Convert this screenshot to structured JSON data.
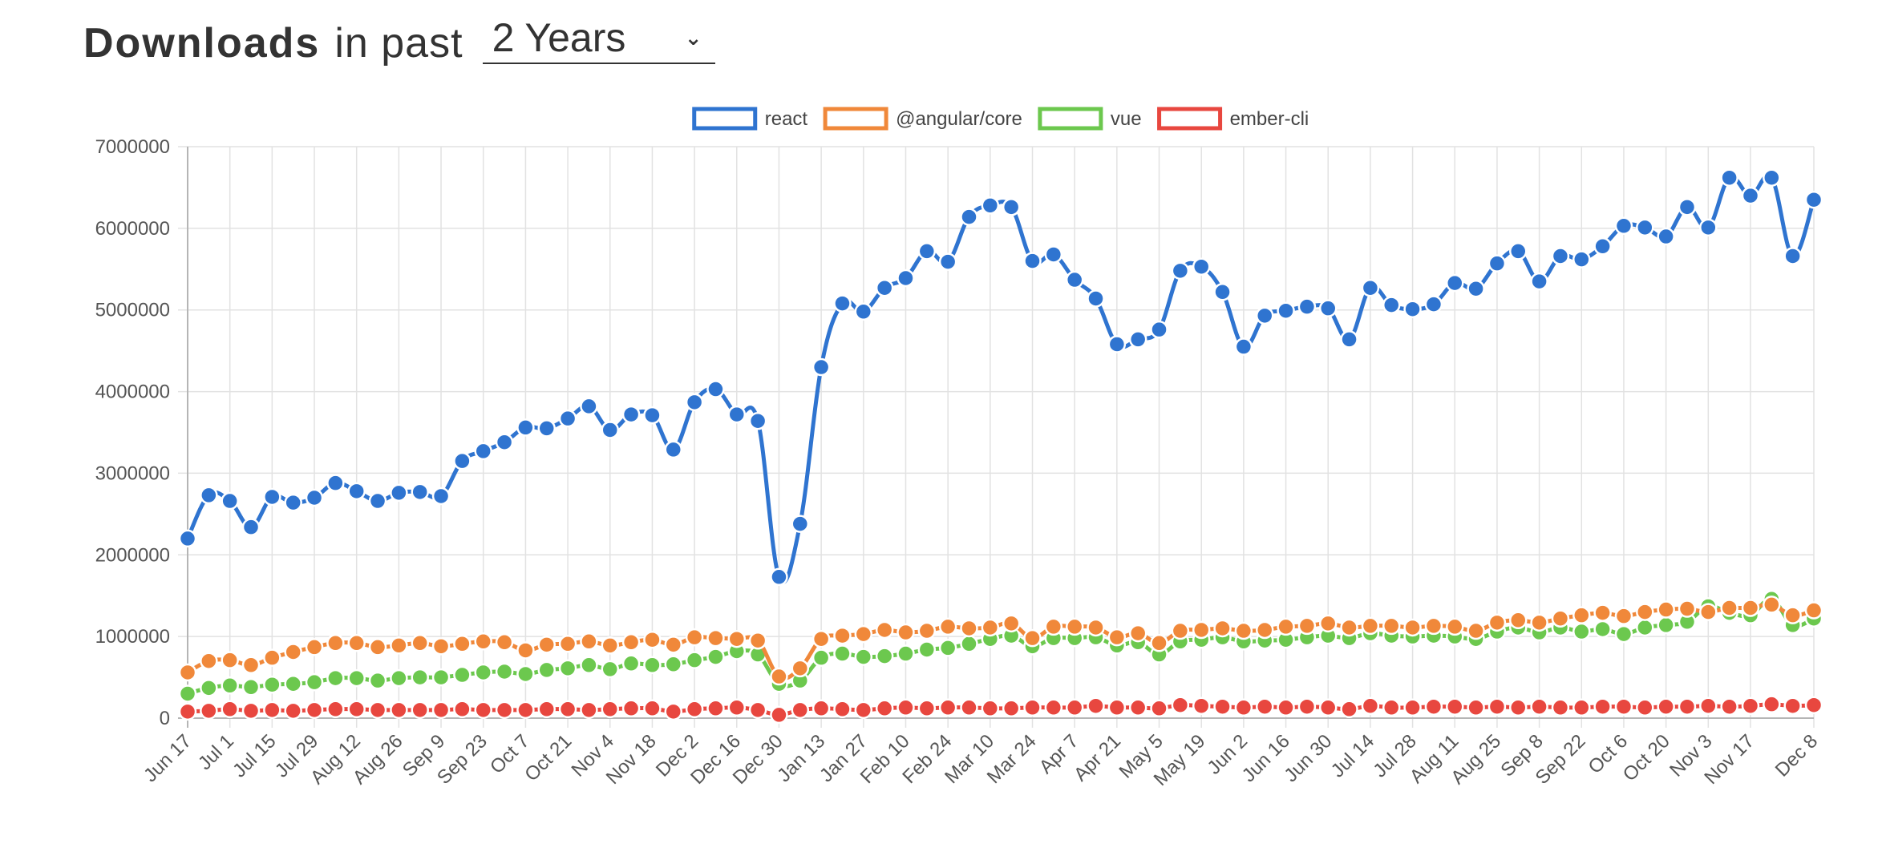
{
  "header": {
    "title_bold": "Downloads",
    "title_rest": "in past",
    "period_selected": "2 Years",
    "chevron_icon": "chevron-down-icon"
  },
  "chart_data": {
    "type": "line",
    "grid": true,
    "legend_position": "top-center",
    "ylim": [
      0,
      7000000
    ],
    "yticks": [
      0,
      1000000,
      2000000,
      3000000,
      4000000,
      5000000,
      6000000,
      7000000
    ],
    "x": [
      "Jun 17",
      "Jun 24",
      "Jul 1",
      "Jul 8",
      "Jul 15",
      "Jul 22",
      "Jul 29",
      "Aug 5",
      "Aug 12",
      "Aug 19",
      "Aug 26",
      "Sep 2",
      "Sep 9",
      "Sep 16",
      "Sep 23",
      "Sep 30",
      "Oct 7",
      "Oct 14",
      "Oct 21",
      "Oct 28",
      "Nov 4",
      "Nov 11",
      "Nov 18",
      "Nov 25",
      "Dec 2",
      "Dec 9",
      "Dec 16",
      "Dec 23",
      "Dec 30",
      "Jan 6",
      "Jan 13",
      "Jan 20",
      "Jan 27",
      "Feb 3",
      "Feb 10",
      "Feb 17",
      "Feb 24",
      "Mar 3",
      "Mar 10",
      "Mar 17",
      "Mar 24",
      "Mar 31",
      "Apr 7",
      "Apr 14",
      "Apr 21",
      "Apr 28",
      "May 5",
      "May 12",
      "May 19",
      "May 26",
      "Jun 2",
      "Jun 9",
      "Jun 16",
      "Jun 23",
      "Jun 30",
      "Jul 7",
      "Jul 14",
      "Jul 21",
      "Jul 28",
      "Aug 4",
      "Aug 11",
      "Aug 18",
      "Aug 25",
      "Sep 1",
      "Sep 8",
      "Sep 15",
      "Sep 22",
      "Sep 29",
      "Oct 6",
      "Oct 13",
      "Oct 20",
      "Oct 27",
      "Nov 3",
      "Nov 10",
      "Nov 17",
      "Nov 24",
      "Dec 1",
      "Dec 8"
    ],
    "xtick_labels": [
      "Jun 17",
      "Jul 1",
      "Jul 15",
      "Jul 29",
      "Aug 12",
      "Aug 26",
      "Sep 9",
      "Sep 23",
      "Oct 7",
      "Oct 21",
      "Nov 4",
      "Nov 18",
      "Dec 2",
      "Dec 16",
      "Dec 30",
      "Jan 13",
      "Jan 27",
      "Feb 10",
      "Feb 24",
      "Mar 10",
      "Mar 24",
      "Apr 7",
      "Apr 21",
      "May 5",
      "May 19",
      "Jun 2",
      "Jun 16",
      "Jun 30",
      "Jul 14",
      "Jul 28",
      "Aug 11",
      "Aug 25",
      "Sep 8",
      "Sep 22",
      "Oct 6",
      "Oct 20",
      "Nov 3",
      "Nov 17",
      "Dec 8"
    ],
    "series": [
      {
        "name": "react",
        "color": "#2f74d0",
        "values": [
          2200000,
          2730000,
          2660000,
          2340000,
          2710000,
          2640000,
          2700000,
          2880000,
          2780000,
          2660000,
          2760000,
          2770000,
          2720000,
          3150000,
          3270000,
          3380000,
          3560000,
          3550000,
          3670000,
          3820000,
          3530000,
          3720000,
          3710000,
          3290000,
          3870000,
          4030000,
          3720000,
          3640000,
          1730000,
          2380000,
          4300000,
          5080000,
          4980000,
          5270000,
          5390000,
          5720000,
          5590000,
          6140000,
          6280000,
          6260000,
          5600000,
          5680000,
          5370000,
          5140000,
          4580000,
          4640000,
          4760000,
          5480000,
          5530000,
          5220000,
          4550000,
          4930000,
          4990000,
          5040000,
          5020000,
          4640000,
          5270000,
          5060000,
          5010000,
          5070000,
          5330000,
          5260000,
          5570000,
          5720000,
          5350000,
          5660000,
          5620000,
          5780000,
          6030000,
          6010000,
          5900000,
          6260000,
          6010000,
          6620000,
          6400000,
          6620000,
          5660000,
          6350000
        ]
      },
      {
        "name": "@angular/core",
        "color": "#f0883a",
        "values": [
          560000,
          700000,
          710000,
          650000,
          740000,
          810000,
          870000,
          920000,
          920000,
          870000,
          890000,
          920000,
          880000,
          910000,
          940000,
          930000,
          830000,
          900000,
          910000,
          940000,
          890000,
          930000,
          960000,
          900000,
          990000,
          980000,
          970000,
          950000,
          510000,
          610000,
          970000,
          1010000,
          1030000,
          1080000,
          1050000,
          1070000,
          1120000,
          1100000,
          1110000,
          1160000,
          980000,
          1120000,
          1120000,
          1110000,
          990000,
          1040000,
          920000,
          1070000,
          1080000,
          1100000,
          1070000,
          1080000,
          1120000,
          1130000,
          1160000,
          1110000,
          1130000,
          1130000,
          1110000,
          1130000,
          1120000,
          1070000,
          1170000,
          1200000,
          1170000,
          1220000,
          1260000,
          1290000,
          1250000,
          1300000,
          1330000,
          1340000,
          1300000,
          1350000,
          1350000,
          1390000,
          1260000,
          1320000
        ]
      },
      {
        "name": "vue",
        "color": "#6cc84e",
        "values": [
          300000,
          370000,
          400000,
          380000,
          410000,
          420000,
          440000,
          490000,
          490000,
          460000,
          490000,
          500000,
          500000,
          530000,
          560000,
          570000,
          540000,
          590000,
          610000,
          650000,
          600000,
          670000,
          650000,
          660000,
          710000,
          750000,
          820000,
          780000,
          420000,
          460000,
          740000,
          790000,
          750000,
          760000,
          790000,
          840000,
          860000,
          910000,
          970000,
          1010000,
          880000,
          980000,
          980000,
          990000,
          890000,
          930000,
          780000,
          940000,
          960000,
          990000,
          940000,
          950000,
          960000,
          990000,
          1010000,
          980000,
          1040000,
          1010000,
          1000000,
          1010000,
          1000000,
          970000,
          1060000,
          1110000,
          1050000,
          1110000,
          1060000,
          1090000,
          1030000,
          1110000,
          1140000,
          1180000,
          1370000,
          1290000,
          1260000,
          1460000,
          1140000,
          1220000
        ]
      },
      {
        "name": "ember-cli",
        "color": "#e8473f",
        "values": [
          80000,
          90000,
          110000,
          90000,
          100000,
          90000,
          100000,
          110000,
          110000,
          100000,
          100000,
          100000,
          100000,
          110000,
          100000,
          100000,
          100000,
          110000,
          110000,
          100000,
          110000,
          120000,
          120000,
          80000,
          110000,
          120000,
          130000,
          100000,
          40000,
          100000,
          120000,
          110000,
          100000,
          120000,
          130000,
          120000,
          130000,
          130000,
          120000,
          120000,
          130000,
          130000,
          130000,
          150000,
          130000,
          130000,
          120000,
          160000,
          150000,
          140000,
          130000,
          140000,
          130000,
          140000,
          130000,
          110000,
          150000,
          130000,
          130000,
          140000,
          140000,
          130000,
          140000,
          130000,
          140000,
          130000,
          130000,
          140000,
          140000,
          130000,
          140000,
          140000,
          150000,
          140000,
          150000,
          170000,
          150000,
          160000
        ]
      }
    ]
  }
}
